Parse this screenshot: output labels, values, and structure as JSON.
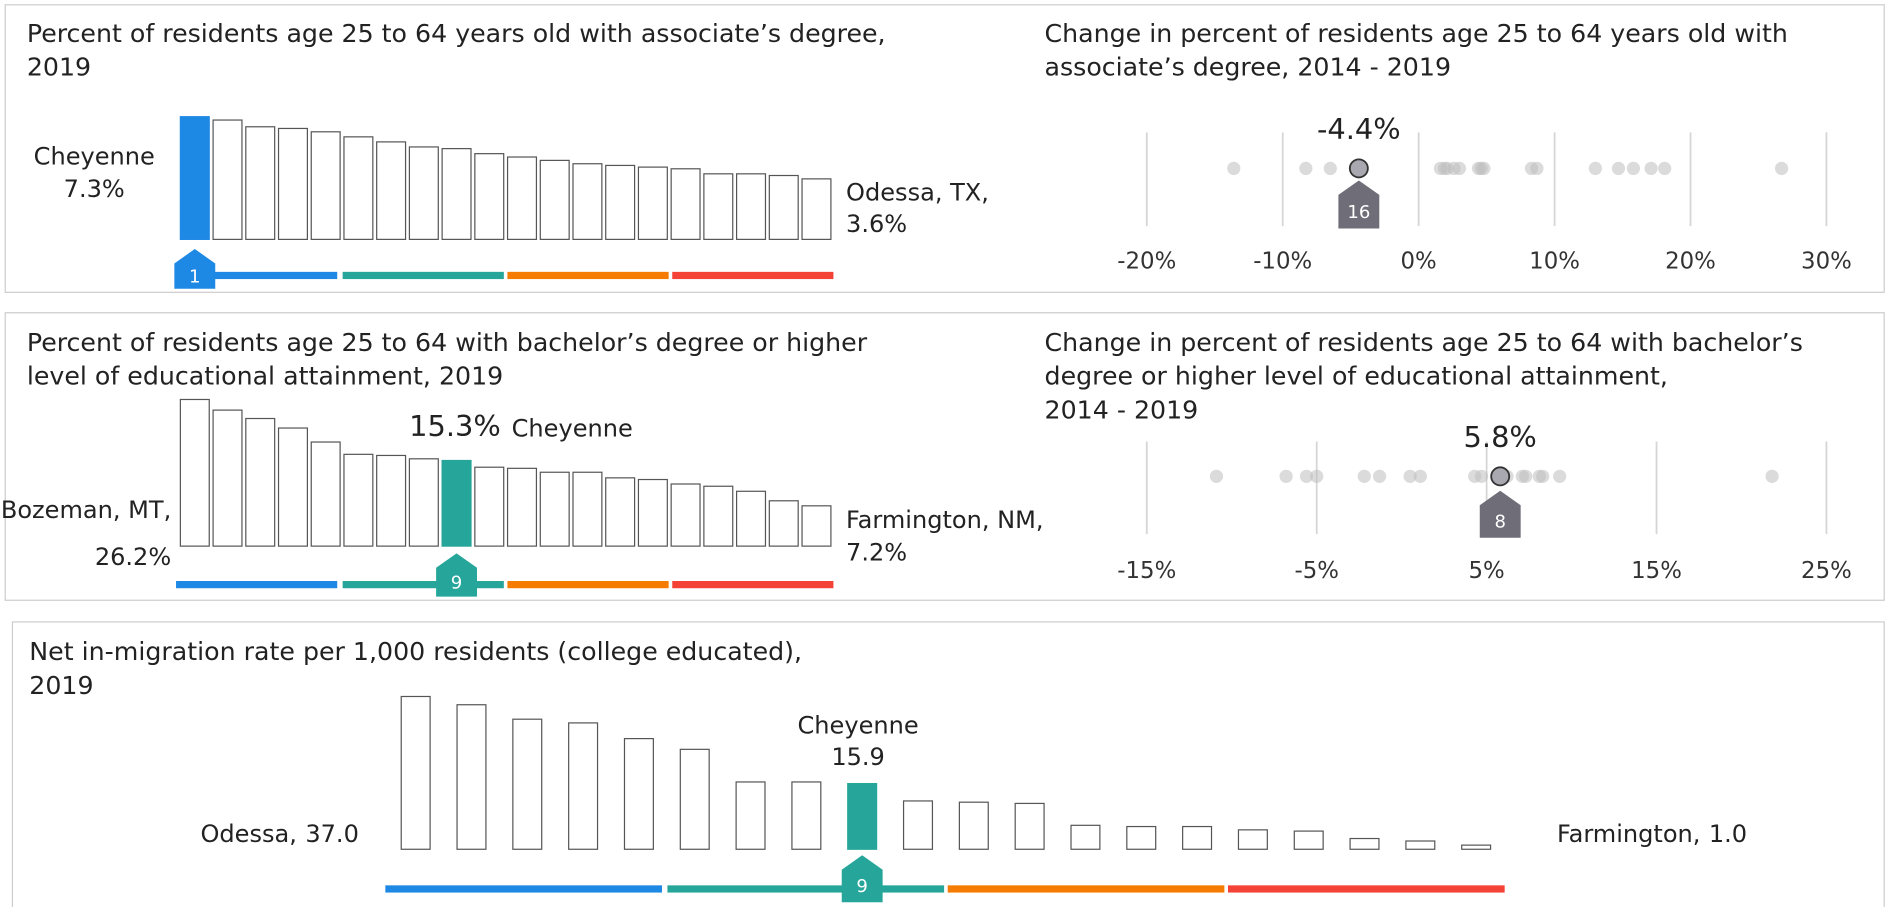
{
  "chart_data": [
    {
      "type": "bar",
      "title": [
        "Percent of residents age 25 to 64 years old with associate’s degree,",
        "2019"
      ],
      "categories": [
        "Cheyenne",
        null,
        null,
        null,
        null,
        null,
        null,
        null,
        null,
        null,
        null,
        null,
        null,
        null,
        null,
        null,
        null,
        null,
        null,
        "Odessa, TX,"
      ],
      "values": [
        7.3,
        7.1,
        6.7,
        6.6,
        6.4,
        6.1,
        5.8,
        5.5,
        5.4,
        5.1,
        4.9,
        4.7,
        4.5,
        4.4,
        4.3,
        4.2,
        3.9,
        3.9,
        3.8,
        3.6
      ],
      "value_labels": [
        "7.3%",
        null,
        null,
        null,
        null,
        null,
        null,
        null,
        null,
        null,
        null,
        null,
        null,
        null,
        null,
        null,
        null,
        null,
        null,
        "3.6%"
      ],
      "ylim": [
        0,
        7.3
      ],
      "highlight": 0,
      "rank": 1,
      "color": "#1e88e5",
      "quartile_colors": [
        "#1e88e5",
        "#26a69a",
        "#f57c00",
        "#f44336"
      ]
    },
    {
      "type": "strip",
      "title": [
        "Change in percent of residents age 25 to 64 years old with",
        "associate’s degree, 2014 - 2019"
      ],
      "values": [
        -13.6,
        -8.3,
        -6.5,
        -4.4,
        1.6,
        1.9,
        2.1,
        2.6,
        3.0,
        4.4,
        4.6,
        4.8,
        8.3,
        8.7,
        13.0,
        14.7,
        15.8,
        17.1,
        18.1,
        26.7
      ],
      "value_labels": [
        null,
        null,
        null,
        "-4.4%",
        null,
        null,
        null,
        null,
        null,
        null,
        null,
        null,
        null,
        null,
        null,
        null,
        null,
        null,
        null,
        null
      ],
      "xlim": [
        -22,
        32
      ],
      "xticks": [
        {
          "value": -20,
          "label": "-20%"
        },
        {
          "value": -10,
          "label": "-10%"
        },
        {
          "value": 0,
          "label": "0%"
        },
        {
          "value": 10,
          "label": "10%"
        },
        {
          "value": 20,
          "label": "20%"
        },
        {
          "value": 30,
          "label": "30%"
        }
      ],
      "grid": true,
      "highlight": 3,
      "rank": 16,
      "color": "#6e6d78"
    },
    {
      "type": "bar",
      "title": [
        "Percent of residents age 25 to 64 with bachelor’s degree or higher",
        "level of educational attainment, 2019"
      ],
      "categories": [
        "Bozeman, MT,",
        null,
        null,
        null,
        null,
        null,
        null,
        null,
        "Cheyenne",
        null,
        null,
        null,
        null,
        null,
        null,
        null,
        null,
        null,
        null,
        "Farmington, NM,"
      ],
      "values": [
        26.2,
        24.3,
        22.8,
        21.1,
        18.6,
        16.4,
        16.2,
        15.6,
        15.3,
        14.1,
        13.9,
        13.2,
        13.2,
        12.2,
        11.9,
        11.1,
        10.7,
        9.8,
        8.1,
        7.2
      ],
      "value_labels": [
        "26.2%",
        null,
        null,
        null,
        null,
        null,
        null,
        null,
        "15.3%",
        null,
        null,
        null,
        null,
        null,
        null,
        null,
        null,
        null,
        null,
        "7.2%"
      ],
      "ylim": [
        0,
        26.5
      ],
      "highlight": 8,
      "rank": 9,
      "color": "#26a69a",
      "quartile_colors": [
        "#1e88e5",
        "#26a69a",
        "#f57c00",
        "#f44336"
      ]
    },
    {
      "type": "strip",
      "title": [
        "Change in percent of residents age 25 to 64 with bachelor’s",
        "degree or higher level of educational attainment,",
        "2014 - 2019"
      ],
      "values": [
        -10.9,
        -6.8,
        -5.6,
        -5.0,
        -2.2,
        -1.3,
        0.5,
        1.1,
        4.3,
        4.7,
        5.8,
        6.2,
        7.1,
        7.3,
        8.1,
        8.3,
        9.3,
        21.8
      ],
      "value_labels": [
        null,
        null,
        null,
        null,
        null,
        null,
        null,
        null,
        null,
        null,
        "5.8%",
        null,
        null,
        null,
        null,
        null,
        null,
        null
      ],
      "xlim": [
        -17,
        27
      ],
      "xticks": [
        {
          "value": -15,
          "label": "-15%"
        },
        {
          "value": -5,
          "label": "-5%"
        },
        {
          "value": 5,
          "label": "5%"
        },
        {
          "value": 15,
          "label": "15%"
        },
        {
          "value": 25,
          "label": "25%"
        }
      ],
      "grid": true,
      "highlight": 10,
      "rank": 8,
      "color": "#6e6d78"
    },
    {
      "type": "bar",
      "title": [
        "Net in-migration rate per 1,000 residents (college educated),",
        "2019"
      ],
      "categories": [
        "Odessa,",
        null,
        null,
        null,
        null,
        null,
        null,
        null,
        "Cheyenne",
        null,
        null,
        null,
        null,
        null,
        null,
        null,
        null,
        null,
        null,
        "Farmington,"
      ],
      "values": [
        37.0,
        35.0,
        31.5,
        30.6,
        26.8,
        24.2,
        16.3,
        16.3,
        15.9,
        11.7,
        11.4,
        11.1,
        5.8,
        5.5,
        5.5,
        4.7,
        4.4,
        2.6,
        2.0,
        1.0
      ],
      "value_labels": [
        "37.0",
        null,
        null,
        null,
        null,
        null,
        null,
        null,
        "15.9",
        null,
        null,
        null,
        null,
        null,
        null,
        null,
        null,
        null,
        null,
        "1.0"
      ],
      "ylim": [
        0,
        37
      ],
      "highlight": 8,
      "rank": 9,
      "color": "#26a69a",
      "quartile_colors": [
        "#1e88e5",
        "#26a69a",
        "#f57c00",
        "#f44336"
      ]
    }
  ]
}
